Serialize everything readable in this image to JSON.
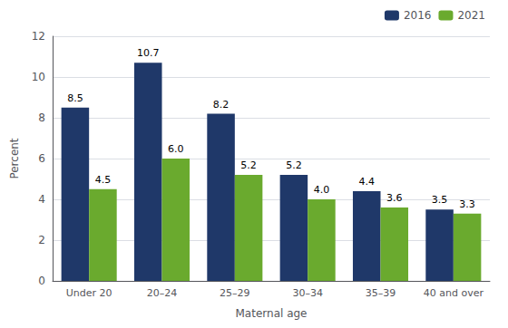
{
  "chart_data": {
    "type": "bar",
    "categories": [
      "Under 20",
      "20–24",
      "25–29",
      "30–34",
      "35–39",
      "40 and over"
    ],
    "series": [
      {
        "name": "2016",
        "color": "#1f3869",
        "values": [
          8.5,
          10.7,
          8.2,
          5.2,
          4.4,
          3.5
        ],
        "value_labels": [
          "8.5",
          "10.7",
          "8.2",
          "5.2",
          "4.4",
          "3.5"
        ]
      },
      {
        "name": "2021",
        "color": "#6aaa2e",
        "values": [
          4.5,
          6.0,
          5.2,
          4.0,
          3.6,
          3.3
        ],
        "value_labels": [
          "4.5",
          "6.0",
          "5.2",
          "4.0",
          "3.6",
          "3.3"
        ]
      }
    ],
    "xlabel": "Maternal age",
    "ylabel": "Percent",
    "ylim": [
      0,
      12
    ],
    "yticks": [
      0,
      2,
      4,
      6,
      8,
      10,
      12
    ],
    "grid": true,
    "legend": "upper right",
    "data_labels": true
  }
}
